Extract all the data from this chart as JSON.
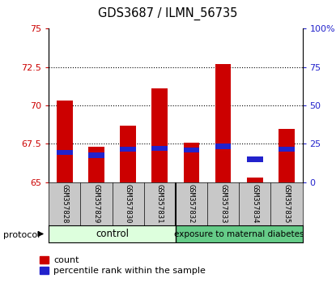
{
  "title": "GDS3687 / ILMN_56735",
  "samples": [
    "GSM357828",
    "GSM357829",
    "GSM357830",
    "GSM357831",
    "GSM357832",
    "GSM357833",
    "GSM357834",
    "GSM357835"
  ],
  "red_tops": [
    70.3,
    67.3,
    68.7,
    71.1,
    67.6,
    72.7,
    65.3,
    68.5
  ],
  "blue_tops": [
    66.95,
    66.75,
    67.15,
    67.2,
    67.1,
    67.35,
    66.5,
    67.15
  ],
  "blue_heights": [
    0.35,
    0.35,
    0.35,
    0.35,
    0.35,
    0.35,
    0.35,
    0.35
  ],
  "base": 65.0,
  "ylim": [
    65.0,
    75.0
  ],
  "yticks_left": [
    65,
    67.5,
    70,
    72.5,
    75
  ],
  "yticks_right_pos": [
    0,
    25,
    50,
    75,
    100
  ],
  "right_ytick_labels": [
    "0",
    "25",
    "50",
    "75",
    "100%"
  ],
  "control_label": "control",
  "treated_label": "exposure to maternal diabetes",
  "protocol_label": "protocol",
  "red_color": "#cc0000",
  "blue_color": "#2222cc",
  "control_bg_light": "#ddffdd",
  "control_bg": "#aaeebb",
  "treated_bg": "#66cc88",
  "legend_red": "count",
  "legend_blue": "percentile rank within the sample",
  "bar_width": 0.5,
  "tick_label_color_left": "#cc0000",
  "tick_label_color_right": "#2222cc",
  "xlabel_area_bg": "#c8c8c8",
  "n_control": 4,
  "n_treated": 4
}
